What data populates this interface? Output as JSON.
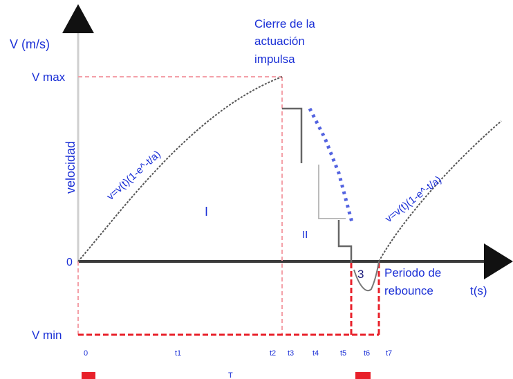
{
  "axes": {
    "y_label": "V (m/s)",
    "x_label": "t(s)",
    "y_side_label": "velocidad",
    "origin_label": "0",
    "vmax_label": "V max",
    "vmin_label": "V min"
  },
  "annotations": {
    "impulse_line1": "Cierre de la",
    "impulse_line2": "actuación",
    "impulse_line3": "impulsa",
    "period_line1": "Periodo de",
    "period_line2": "rebounce",
    "rising_curve_left": "v=v(t)(1-e^-t/a)",
    "rising_curve_right": "v=v(t)(1-e^-t/a)",
    "region_1": "I",
    "region_2": "II",
    "region_3": "3"
  },
  "time_marks": [
    "0",
    "t1",
    "t2",
    "t3",
    "t4",
    "t5",
    "t6",
    "t7"
  ],
  "bottom_mid_label": "T",
  "colors": {
    "axis": "#2b2b2b",
    "text": "#1a2fd6",
    "dashed_red": "#e8202a",
    "light_red": "#f4a0a8",
    "curve": "#444444",
    "gray_line": "#777777"
  }
}
